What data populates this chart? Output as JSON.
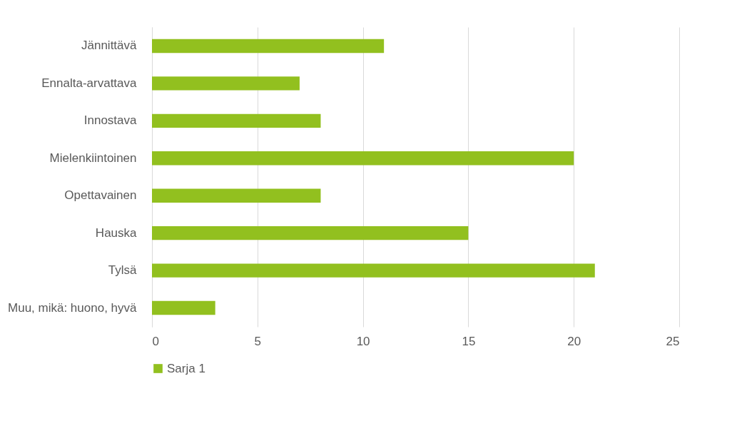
{
  "chart_data": {
    "type": "bar",
    "orientation": "horizontal",
    "categories": [
      "Jännittävä",
      "Ennalta-arvattava",
      "Innostava",
      "Mielenkiintoinen",
      "Opettavainen",
      "Hauska",
      "Tylsä",
      "Muu, mikä: huono, hyvä"
    ],
    "series": [
      {
        "name": "Sarja 1",
        "color": "#92c01f",
        "values": [
          11,
          7,
          8,
          20,
          8,
          15,
          21,
          3
        ]
      }
    ],
    "xlim": [
      0,
      25
    ],
    "xticks": [
      0,
      5,
      10,
      15,
      20,
      25
    ],
    "grid": "x",
    "legend": "bottom"
  }
}
